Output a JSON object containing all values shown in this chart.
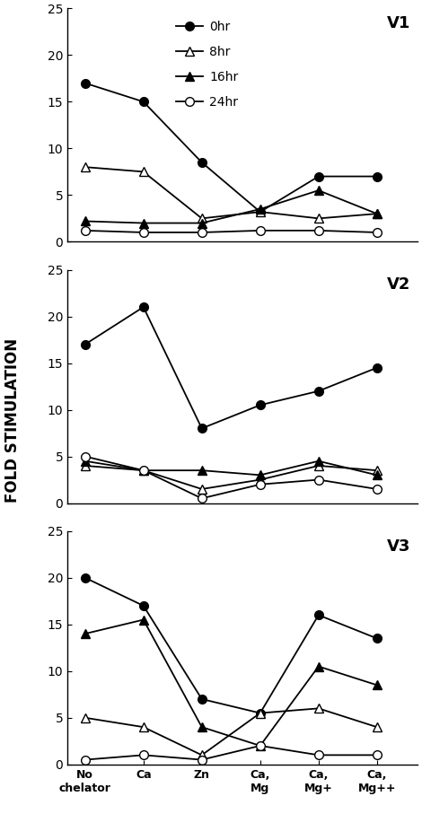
{
  "panels": [
    "V1",
    "V2",
    "V3"
  ],
  "x_labels": [
    "No\nchelator",
    "Ca",
    "Zn",
    "Ca,\nMg",
    "Ca,\nMg+",
    "Ca,\nMg++"
  ],
  "x_positions": [
    0,
    1,
    2,
    3,
    4,
    5
  ],
  "series_labels": [
    "0hr",
    "8hr",
    "16hr",
    "24hr"
  ],
  "V1": {
    "0hr": [
      17.0,
      15.0,
      8.5,
      3.2,
      7.0,
      7.0
    ],
    "8hr": [
      8.0,
      7.5,
      2.5,
      3.2,
      2.5,
      3.0
    ],
    "16hr": [
      2.2,
      2.0,
      2.0,
      3.5,
      5.5,
      3.0
    ],
    "24hr": [
      1.2,
      1.0,
      1.0,
      1.2,
      1.2,
      1.0
    ]
  },
  "V2": {
    "0hr": [
      17.0,
      21.0,
      8.0,
      10.5,
      12.0,
      14.5
    ],
    "8hr": [
      4.0,
      3.5,
      1.5,
      2.5,
      4.0,
      3.5
    ],
    "16hr": [
      4.5,
      3.5,
      3.5,
      3.0,
      4.5,
      3.0
    ],
    "24hr": [
      5.0,
      3.5,
      0.5,
      2.0,
      2.5,
      1.5
    ]
  },
  "V3": {
    "0hr": [
      20.0,
      17.0,
      7.0,
      5.5,
      16.0,
      13.5
    ],
    "8hr": [
      5.0,
      4.0,
      1.0,
      5.5,
      6.0,
      4.0
    ],
    "16hr": [
      14.0,
      15.5,
      4.0,
      2.0,
      10.5,
      8.5
    ],
    "24hr": [
      0.5,
      1.0,
      0.5,
      2.0,
      1.0,
      1.0
    ]
  },
  "ylim": [
    0,
    25
  ],
  "yticks": [
    0,
    5,
    10,
    15,
    20,
    25
  ],
  "ylabel": "FOLD STIMULATION",
  "background_color": "white",
  "marker_size": 7,
  "linewidth": 1.3
}
